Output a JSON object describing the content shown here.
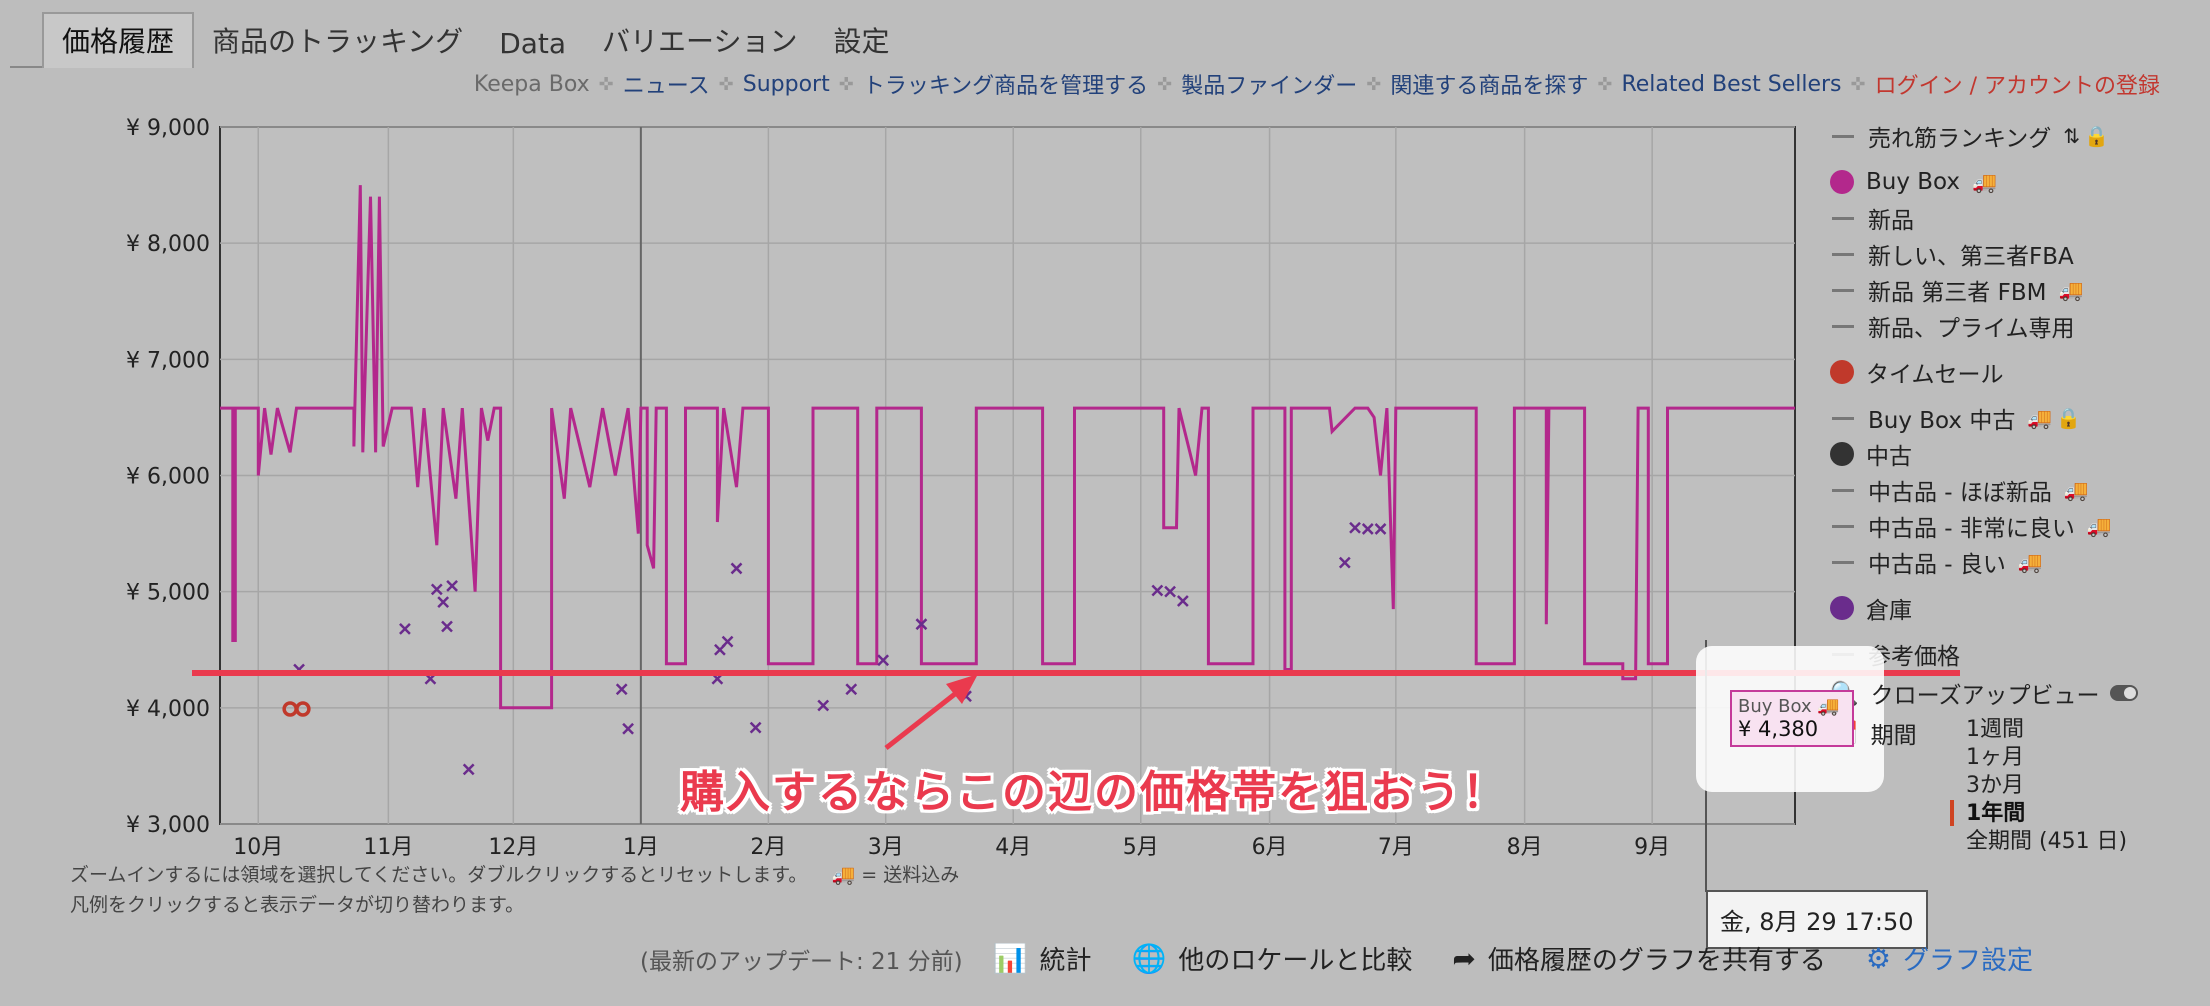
{
  "tabs": [
    {
      "label": "価格履歴",
      "active": true
    },
    {
      "label": "商品のトラッキング"
    },
    {
      "label": "Data"
    },
    {
      "label": "バリエーション"
    },
    {
      "label": "設定"
    }
  ],
  "links": {
    "brand": "Keepa Box",
    "items": [
      "ニュース",
      "Support",
      "トラッキング商品を管理する",
      "製品ファインダー",
      "関連する商品を探す",
      "Related Best Sellers"
    ],
    "login": "ログイン / アカウントの登録"
  },
  "legend": [
    {
      "label": "売れ筋ランキング",
      "kind": "line",
      "icons": [
        "sort-icon",
        "lock-icon"
      ]
    },
    {
      "label": "Buy Box",
      "kind": "dot",
      "color": "#b3288c",
      "icons": [
        "truck-icon"
      ]
    },
    {
      "label": "新品",
      "kind": "line"
    },
    {
      "label": "新しい、第三者FBA",
      "kind": "line"
    },
    {
      "label": "新品 第三者 FBM",
      "kind": "line",
      "icons": [
        "truck-icon"
      ]
    },
    {
      "label": "新品、プライム専用",
      "kind": "line"
    },
    {
      "label": "タイムセール",
      "kind": "dot",
      "color": "#c0392b"
    },
    {
      "label": "Buy Box 中古",
      "kind": "line",
      "icons": [
        "truck-icon",
        "lock-icon"
      ]
    },
    {
      "label": "中古",
      "kind": "dot",
      "color": "#333333"
    },
    {
      "label": "中古品 - ほぼ新品",
      "kind": "line",
      "icons": [
        "truck-icon"
      ]
    },
    {
      "label": "中古品 - 非常に良い",
      "kind": "line",
      "icons": [
        "truck-icon"
      ]
    },
    {
      "label": "中古品 - 良い",
      "kind": "line",
      "icons": [
        "truck-icon"
      ]
    },
    {
      "label": "倉庫",
      "kind": "dot",
      "color": "#6a2c8c"
    },
    {
      "label": "参考価格",
      "kind": "line"
    }
  ],
  "closeup_label": "クローズアップビュー",
  "period": {
    "label": "期間",
    "options": [
      "1週間",
      "1ヶ月",
      "3か月",
      "1年間",
      "全期間 (451 日)"
    ],
    "active_index": 3
  },
  "hint": {
    "line1": "ズームインするには領域を選択してください。ダブルクリックするとリセットします。",
    "shipping": "= 送料込み",
    "line2": "凡例をクリックすると表示データが切り替わります。"
  },
  "bottom": {
    "update": "(最新のアップデート: 21 分前)",
    "stats": "統計",
    "compare": "他のロケールと比較",
    "share": "価格履歴のグラフを共有する",
    "settings": "グラフ設定"
  },
  "hover": {
    "date": "金, 8月 29 17:50",
    "series": "Buy Box",
    "value": "¥ 4,380"
  },
  "annotation": "購入するならこの辺の価格帯を狙おう！",
  "colors": {
    "buybox": "#b3288c",
    "warehouse": "#6a2c8c",
    "deal": "#c0392b",
    "annotation": "#ea3a4e"
  },
  "chart_data": {
    "type": "line",
    "ylim": [
      3000,
      9000
    ],
    "xlim": [
      0,
      12.35
    ],
    "x_unit": "month index (0 = start of 10月)",
    "yticks": [
      3000,
      4000,
      5000,
      6000,
      7000,
      8000,
      9000
    ],
    "ytick_labels": [
      "¥ 3,000",
      "¥ 4,000",
      "¥ 5,000",
      "¥ 6,000",
      "¥ 7,000",
      "¥ 8,000",
      "¥ 9,000"
    ],
    "xticks": [
      0.3,
      1.32,
      2.3,
      3.3,
      4.3,
      5.22,
      6.22,
      7.22,
      8.23,
      9.22,
      10.23,
      11.23
    ],
    "xtick_labels": [
      "10月",
      "11月",
      "12月",
      "1月",
      "2月",
      "3月",
      "4月",
      "5月",
      "6月",
      "7月",
      "8月",
      "9月"
    ],
    "reference_line": 4300,
    "grid": true,
    "series": [
      {
        "name": "Buy Box",
        "color": "#b3288c",
        "points": [
          [
            0.0,
            6580
          ],
          [
            0.1,
            6580
          ],
          [
            0.1,
            4580
          ],
          [
            0.12,
            4580
          ],
          [
            0.12,
            6580
          ],
          [
            0.3,
            6580
          ],
          [
            0.3,
            6000
          ],
          [
            0.35,
            6580
          ],
          [
            0.4,
            6180
          ],
          [
            0.45,
            6580
          ],
          [
            0.55,
            6200
          ],
          [
            0.6,
            6580
          ],
          [
            1.05,
            6580
          ],
          [
            1.05,
            6250
          ],
          [
            1.1,
            8500
          ],
          [
            1.12,
            6200
          ],
          [
            1.18,
            8400
          ],
          [
            1.22,
            6200
          ],
          [
            1.25,
            8400
          ],
          [
            1.28,
            6250
          ],
          [
            1.35,
            6580
          ],
          [
            1.5,
            6580
          ],
          [
            1.55,
            5900
          ],
          [
            1.6,
            6580
          ],
          [
            1.7,
            5400
          ],
          [
            1.75,
            6580
          ],
          [
            1.85,
            5800
          ],
          [
            1.9,
            6580
          ],
          [
            2.0,
            5000
          ],
          [
            2.05,
            6580
          ],
          [
            2.1,
            6300
          ],
          [
            2.15,
            6580
          ],
          [
            2.2,
            6580
          ],
          [
            2.2,
            4000
          ],
          [
            2.6,
            4000
          ],
          [
            2.6,
            6580
          ],
          [
            2.7,
            5800
          ],
          [
            2.75,
            6580
          ],
          [
            2.9,
            5900
          ],
          [
            3.0,
            6580
          ],
          [
            3.1,
            6000
          ],
          [
            3.2,
            6580
          ],
          [
            3.28,
            5500
          ],
          [
            3.3,
            6580
          ],
          [
            3.35,
            6580
          ],
          [
            3.35,
            5400
          ],
          [
            3.4,
            5200
          ],
          [
            3.42,
            6580
          ],
          [
            3.5,
            6580
          ],
          [
            3.5,
            4380
          ],
          [
            3.65,
            4380
          ],
          [
            3.65,
            6580
          ],
          [
            3.9,
            6580
          ],
          [
            3.9,
            5600
          ],
          [
            3.95,
            6580
          ],
          [
            4.05,
            5900
          ],
          [
            4.1,
            6580
          ],
          [
            4.3,
            6580
          ],
          [
            4.3,
            4380
          ],
          [
            4.65,
            4380
          ],
          [
            4.65,
            6580
          ],
          [
            5.0,
            6580
          ],
          [
            5.0,
            4380
          ],
          [
            5.15,
            4380
          ],
          [
            5.15,
            6580
          ],
          [
            5.5,
            6580
          ],
          [
            5.5,
            4380
          ],
          [
            5.93,
            4380
          ],
          [
            5.93,
            6580
          ],
          [
            6.45,
            6580
          ],
          [
            6.45,
            4380
          ],
          [
            6.7,
            4380
          ],
          [
            6.7,
            6580
          ],
          [
            7.4,
            6580
          ],
          [
            7.4,
            5550
          ],
          [
            7.5,
            5550
          ],
          [
            7.52,
            6580
          ],
          [
            7.65,
            6000
          ],
          [
            7.7,
            6580
          ],
          [
            7.75,
            6580
          ],
          [
            7.75,
            4380
          ],
          [
            8.1,
            4380
          ],
          [
            8.1,
            6580
          ],
          [
            8.35,
            6580
          ],
          [
            8.35,
            4330
          ],
          [
            8.4,
            4330
          ],
          [
            8.4,
            6580
          ],
          [
            8.7,
            6580
          ],
          [
            8.72,
            6380
          ],
          [
            8.9,
            6580
          ],
          [
            9.0,
            6580
          ],
          [
            9.05,
            6500
          ],
          [
            9.1,
            6000
          ],
          [
            9.15,
            6580
          ],
          [
            9.2,
            4850
          ],
          [
            9.22,
            6580
          ],
          [
            9.85,
            6580
          ],
          [
            9.85,
            4380
          ],
          [
            10.15,
            4380
          ],
          [
            10.15,
            6580
          ],
          [
            10.4,
            6580
          ],
          [
            10.4,
            4720
          ],
          [
            10.42,
            6580
          ],
          [
            10.7,
            6580
          ],
          [
            10.7,
            4380
          ],
          [
            11.0,
            4380
          ],
          [
            11.0,
            4250
          ],
          [
            11.1,
            4250
          ],
          [
            11.12,
            6580
          ],
          [
            11.2,
            6580
          ],
          [
            11.2,
            4380
          ],
          [
            11.35,
            4380
          ],
          [
            11.35,
            6580
          ],
          [
            12.35,
            6580
          ]
        ]
      },
      {
        "name": "倉庫",
        "color": "#6a2c8c",
        "points": [
          [
            0.62,
            4330
          ],
          [
            1.45,
            4680
          ],
          [
            1.65,
            4250
          ],
          [
            1.7,
            5020
          ],
          [
            1.75,
            4910
          ],
          [
            1.78,
            4700
          ],
          [
            1.82,
            5050
          ],
          [
            1.95,
            3470
          ],
          [
            3.15,
            4160
          ],
          [
            3.2,
            3820
          ],
          [
            3.9,
            4250
          ],
          [
            3.92,
            4500
          ],
          [
            3.98,
            4570
          ],
          [
            4.05,
            5200
          ],
          [
            4.2,
            3830
          ],
          [
            4.73,
            4020
          ],
          [
            4.95,
            4160
          ],
          [
            5.2,
            4410
          ],
          [
            5.5,
            4720
          ],
          [
            5.85,
            4100
          ],
          [
            7.35,
            5010
          ],
          [
            7.45,
            5000
          ],
          [
            7.55,
            4920
          ],
          [
            8.82,
            5250
          ],
          [
            8.9,
            5550
          ],
          [
            9.0,
            5540
          ],
          [
            9.1,
            5540
          ]
        ]
      },
      {
        "name": "タイムセール",
        "color": "#c0392b",
        "points": [
          [
            0.55,
            3990
          ],
          [
            0.65,
            3990
          ]
        ]
      }
    ]
  }
}
